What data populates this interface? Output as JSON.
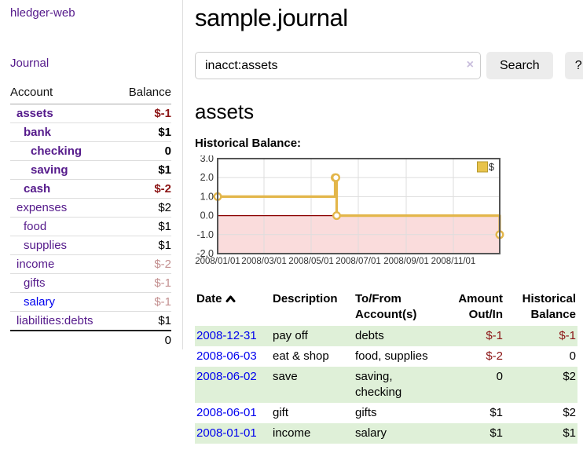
{
  "sidebar": {
    "brand": "hledger-web",
    "nav": {
      "journal_label": "Journal"
    },
    "accounts_table": {
      "headers": {
        "account": "Account",
        "balance": "Balance"
      },
      "accounts": [
        {
          "name": "assets",
          "depth": 0,
          "bold": true,
          "balance": "$-1",
          "balance_style": "neg-strong",
          "link_style": "purple"
        },
        {
          "name": "bank",
          "depth": 1,
          "bold": true,
          "balance": "$1",
          "balance_style": "normal",
          "link_style": "purple"
        },
        {
          "name": "checking",
          "depth": 2,
          "bold": true,
          "balance": "0",
          "balance_style": "normal",
          "link_style": "purple"
        },
        {
          "name": "saving",
          "depth": 2,
          "bold": true,
          "balance": "$1",
          "balance_style": "normal",
          "link_style": "purple"
        },
        {
          "name": "cash",
          "depth": 1,
          "bold": true,
          "balance": "$-2",
          "balance_style": "neg-strong",
          "link_style": "purple"
        },
        {
          "name": "expenses",
          "depth": 0,
          "bold": false,
          "balance": "$2",
          "balance_style": "normal",
          "link_style": "purple"
        },
        {
          "name": "food",
          "depth": 1,
          "bold": false,
          "balance": "$1",
          "balance_style": "normal",
          "link_style": "purple"
        },
        {
          "name": "supplies",
          "depth": 1,
          "bold": false,
          "balance": "$1",
          "balance_style": "normal",
          "link_style": "purple"
        },
        {
          "name": "income",
          "depth": 0,
          "bold": false,
          "balance": "$-2",
          "balance_style": "neg-soft",
          "link_style": "purple"
        },
        {
          "name": "gifts",
          "depth": 1,
          "bold": false,
          "balance": "$-1",
          "balance_style": "neg-soft",
          "link_style": "purple"
        },
        {
          "name": "salary",
          "depth": 1,
          "bold": false,
          "balance": "$-1",
          "balance_style": "neg-soft",
          "link_style": "blue"
        },
        {
          "name": "liabilities:debts",
          "depth": 0,
          "bold": false,
          "balance": "$1",
          "balance_style": "normal",
          "link_style": "purple"
        }
      ],
      "total": "0"
    }
  },
  "header": {
    "title": "sample.journal"
  },
  "search": {
    "query": "inacct:assets",
    "clear_icon": "×",
    "button_label": "Search",
    "help_label": "?"
  },
  "account_page": {
    "heading": "assets",
    "chart_label": "Historical Balance:"
  },
  "chart_data": {
    "type": "line",
    "step": true,
    "title": "Historical Balance:",
    "legend": "$",
    "legend_position": "top-right",
    "grid": true,
    "x_range": [
      "2008-01-01",
      "2008-12-31"
    ],
    "ylim": [
      -2,
      3
    ],
    "y_ticks": [
      "3.0",
      "2.0",
      "1.0",
      "0.0",
      "-1.0",
      "-2.0"
    ],
    "x_ticks": [
      {
        "date": "2008-01-01",
        "label": "2008/01/01"
      },
      {
        "date": "2008-03-01",
        "label": "2008/03/01"
      },
      {
        "date": "2008-05-01",
        "label": "2008/05/01"
      },
      {
        "date": "2008-07-01",
        "label": "2008/07/01"
      },
      {
        "date": "2008-09-01",
        "label": "2008/09/01"
      },
      {
        "date": "2008-11-01",
        "label": "2008/11/01"
      }
    ],
    "series": [
      {
        "name": "$",
        "points": [
          {
            "x": "2008-01-01",
            "y": 1
          },
          {
            "x": "2008-06-01",
            "y": 2
          },
          {
            "x": "2008-06-02",
            "y": 2
          },
          {
            "x": "2008-06-03",
            "y": 0
          },
          {
            "x": "2008-12-31",
            "y": -1
          }
        ]
      }
    ],
    "colors": {
      "line": "#e3b64a",
      "marker_fill": "#ffffff",
      "legend_square": "#e8c34b",
      "legend_square_border": "#b6992e",
      "negative_region": "#fadcdc",
      "zero_line": "#8b0000",
      "grid": "#dddddd",
      "plot_border": "#555555",
      "tick_text": "#333333"
    }
  },
  "register": {
    "headers": {
      "date": "Date",
      "description": "Description",
      "accounts": "To/From\nAccount(s)",
      "amount": "Amount\nOut/In",
      "balance": "Historical\nBalance"
    },
    "sort": {
      "column": "date",
      "direction": "ascending"
    },
    "rows": [
      {
        "date": "2008-12-31",
        "description": "pay off",
        "accounts": "debts",
        "amount": "$-1",
        "amount_style": "neg-strong",
        "balance": "$-1",
        "balance_style": "neg-strong",
        "striped": true
      },
      {
        "date": "2008-06-03",
        "description": "eat & shop",
        "accounts": "food, supplies",
        "amount": "$-2",
        "amount_style": "neg-strong",
        "balance": "0",
        "balance_style": "normal",
        "striped": false
      },
      {
        "date": "2008-06-02",
        "description": "save",
        "accounts": "saving,\nchecking",
        "amount": "0",
        "amount_style": "normal",
        "balance": "$2",
        "balance_style": "normal",
        "striped": true
      },
      {
        "date": "2008-06-01",
        "description": "gift",
        "accounts": "gifts",
        "amount": "$1",
        "amount_style": "normal",
        "balance": "$2",
        "balance_style": "normal",
        "striped": false
      },
      {
        "date": "2008-01-01",
        "description": "income",
        "accounts": "salary",
        "amount": "$1",
        "amount_style": "normal",
        "balance": "$1",
        "balance_style": "normal",
        "striped": true
      }
    ]
  },
  "colors": {
    "link_purple": "#551a8b",
    "link_blue": "#0000ee",
    "negative_strong": "#8b1414",
    "negative_soft": "#c38f8f",
    "row_stripe_green": "#dff0d8"
  }
}
